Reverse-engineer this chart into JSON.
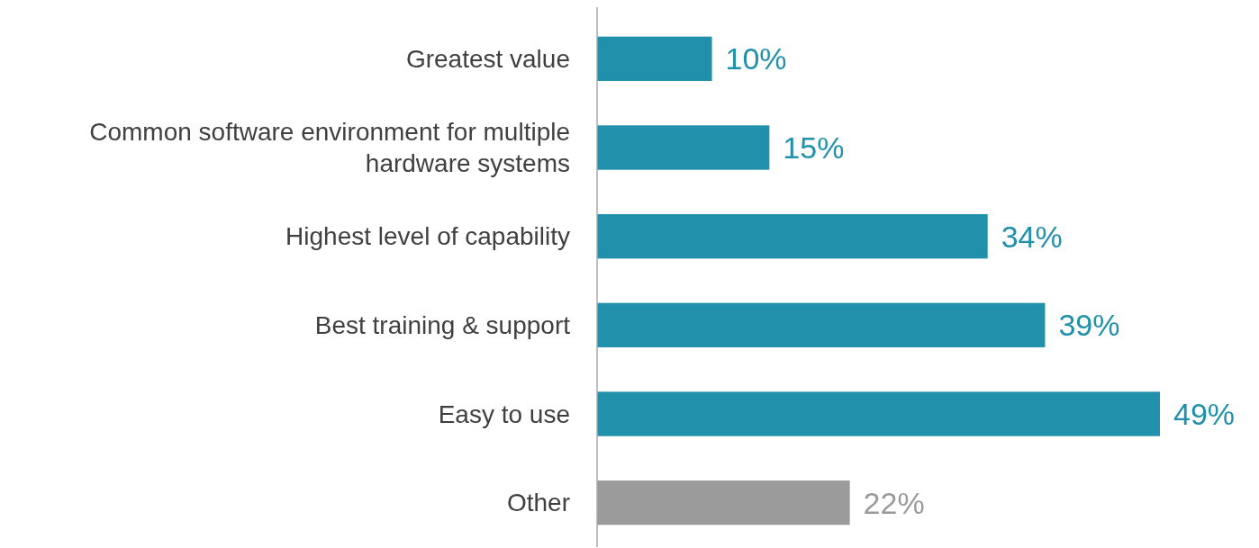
{
  "chart_data": {
    "type": "bar",
    "orientation": "horizontal",
    "categories": [
      "Greatest value",
      "Common software environment for multiple hardware systems",
      "Highest level of capability",
      "Best training & support",
      "Easy to use",
      "Other"
    ],
    "values": [
      10,
      15,
      34,
      39,
      49,
      22
    ],
    "colors": [
      "#2190ab",
      "#2190ab",
      "#2190ab",
      "#2190ab",
      "#2190ab",
      "#9b9b9b"
    ],
    "value_labels": [
      "10%",
      "15%",
      "34%",
      "39%",
      "49%",
      "22%"
    ]
  }
}
